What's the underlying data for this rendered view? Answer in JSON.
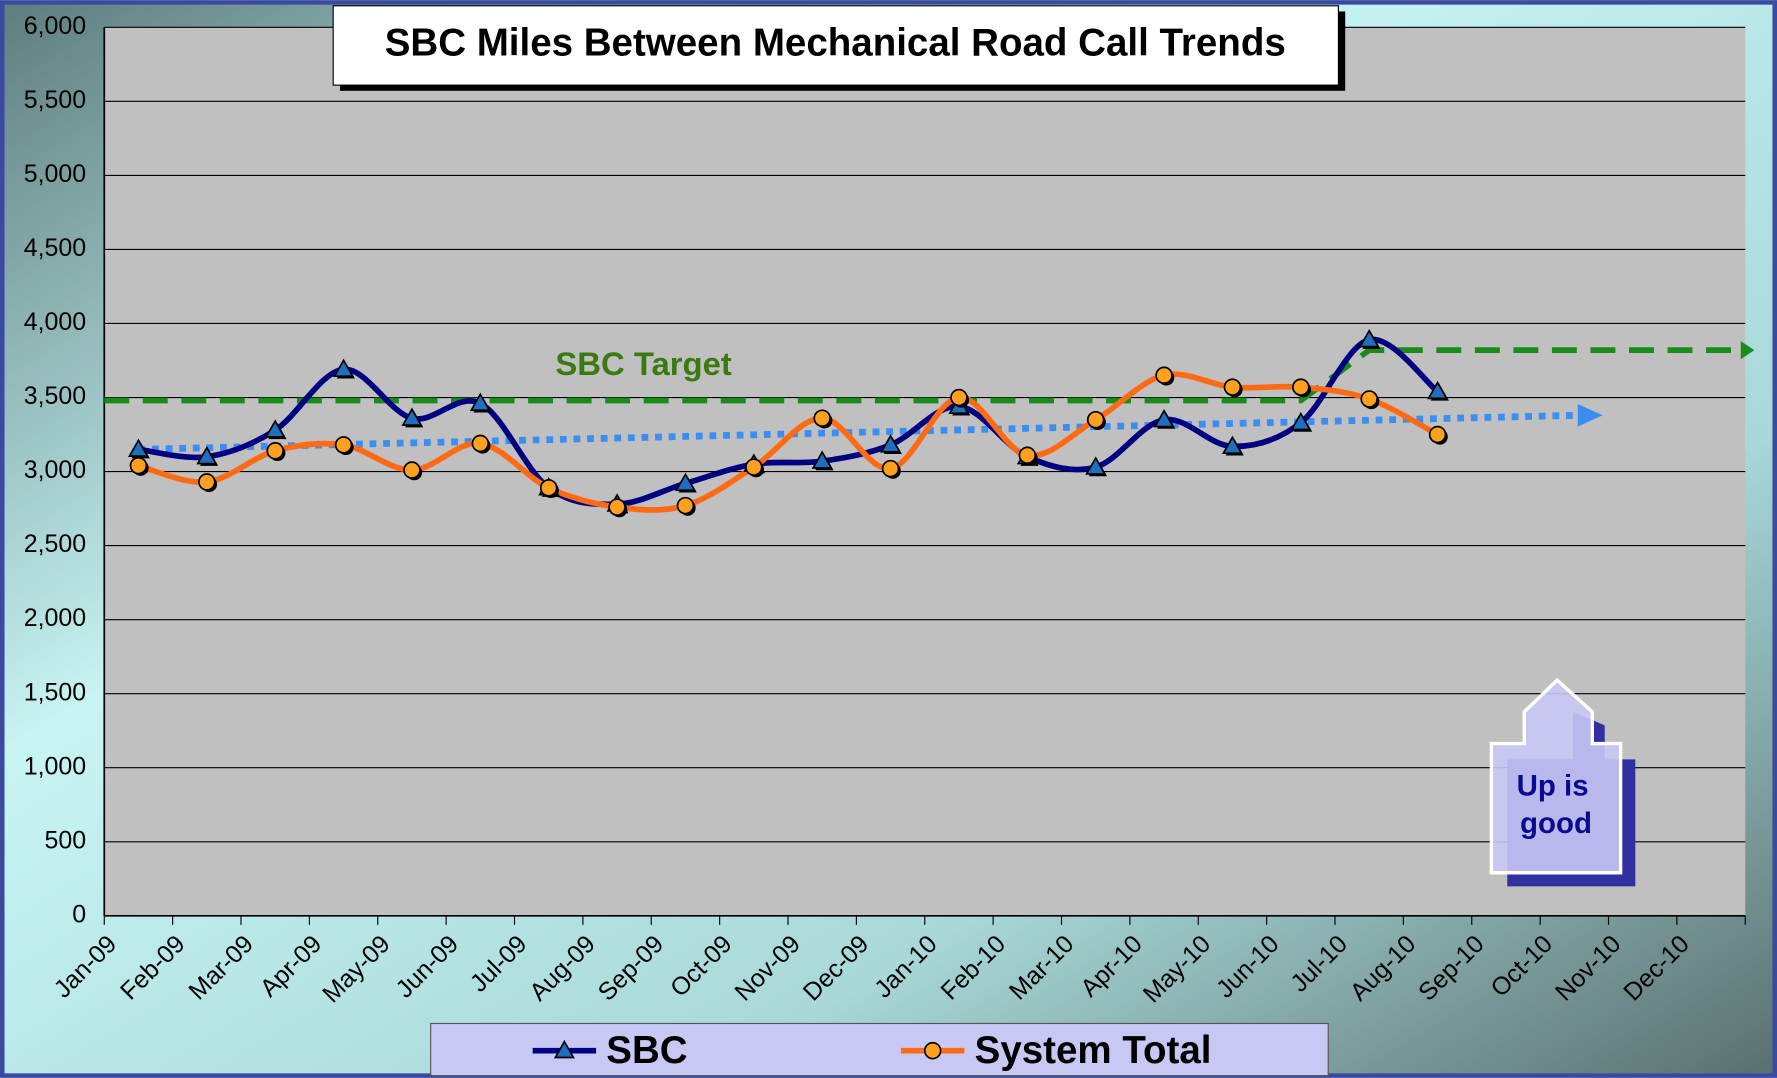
{
  "chart_data": {
    "type": "line",
    "title": "SBC Miles Between Mechanical Road Call Trends",
    "categories": [
      "Jan-09",
      "Feb-09",
      "Mar-09",
      "Apr-09",
      "May-09",
      "Jun-09",
      "Jul-09",
      "Aug-09",
      "Sep-09",
      "Oct-09",
      "Nov-09",
      "Dec-09",
      "Jan-10",
      "Feb-10",
      "Mar-10",
      "Apr-10",
      "May-10",
      "Jun-10",
      "Jul-10",
      "Aug-10",
      "Sep-10",
      "Oct-10",
      "Nov-10",
      "Dec-10"
    ],
    "series": [
      {
        "name": "SBC",
        "color": "#000080",
        "marker": "triangle",
        "marker_color": "#1f6fc0",
        "values": [
          3150,
          3100,
          3280,
          3690,
          3360,
          3460,
          2890,
          2780,
          2920,
          3050,
          3070,
          3180,
          3440,
          3100,
          3030,
          3350,
          3170,
          3330,
          3890,
          3540,
          null,
          null,
          null,
          null
        ]
      },
      {
        "name": "System Total",
        "color": "#ff6a13",
        "marker": "circle",
        "marker_color": "#ffa020",
        "values": [
          3040,
          2930,
          3140,
          3180,
          3010,
          3190,
          2890,
          2760,
          2770,
          3030,
          3360,
          3020,
          3500,
          3110,
          3350,
          3650,
          3570,
          3570,
          3490,
          3250,
          null,
          null,
          null,
          null
        ]
      }
    ],
    "target": {
      "label": "SBC Target",
      "color": "#1a8a1a",
      "values": [
        3480,
        3480,
        3480,
        3480,
        3480,
        3480,
        3480,
        3480,
        3480,
        3480,
        3480,
        3480,
        3480,
        3480,
        3480,
        3480,
        3480,
        3480,
        3820,
        3820,
        3820,
        3820,
        3820,
        3820
      ]
    },
    "trend": {
      "color": "#3b8ef0",
      "start": 3150,
      "end": 3380
    },
    "annotation": [
      "Up is",
      "good"
    ],
    "ylim": [
      0,
      6000
    ],
    "yticks": [
      0,
      500,
      {
        "value": 1000,
        "label": "1,000"
      },
      {
        "value": 1500,
        "label": "1,500"
      },
      {
        "value": 2000,
        "label": "2,000"
      },
      {
        "value": 2500,
        "label": "2,500"
      },
      {
        "value": 3000,
        "label": "3,000"
      },
      {
        "value": 3500,
        "label": "3,500"
      },
      {
        "value": 4000,
        "label": "4,000"
      },
      {
        "value": 4500,
        "label": "4,500"
      },
      {
        "value": 5000,
        "label": "5,000"
      },
      {
        "value": 5500,
        "label": "5,500"
      },
      {
        "value": 6000,
        "label": "6,000"
      }
    ],
    "grid": true
  }
}
